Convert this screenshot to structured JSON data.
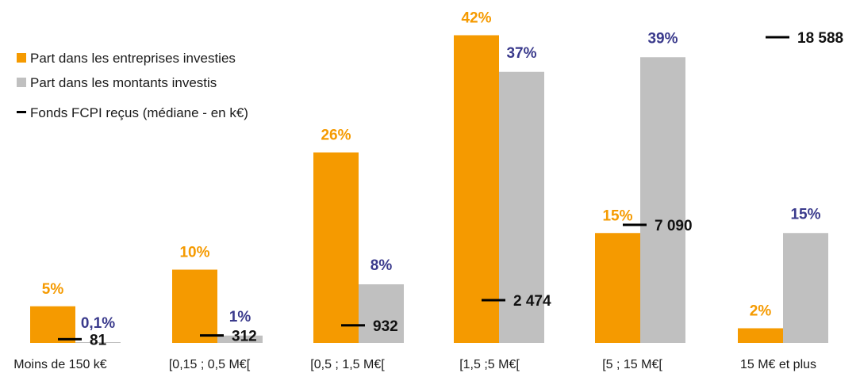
{
  "chart_data": {
    "type": "bar",
    "categories": [
      "Moins de 150 k€",
      "[0,15 ; 0,5 M€[",
      "[0,5 ; 1,5 M€[",
      "[1,5 ;5 M€[",
      "[5 ; 15 M€[",
      "15 M€ et plus"
    ],
    "series": [
      {
        "name": "Part dans les entreprises investies",
        "values": [
          5,
          10,
          26,
          42,
          15,
          2
        ],
        "labels": [
          "5%",
          "10%",
          "26%",
          "42%",
          "15%",
          "2%"
        ],
        "color": "#f59a00",
        "label_color": "#f59a00"
      },
      {
        "name": "Part dans les montants investis",
        "values": [
          0.1,
          1,
          8,
          37,
          39,
          15
        ],
        "labels": [
          "0,1%",
          "1%",
          "8%",
          "37%",
          "39%",
          "15%"
        ],
        "color": "#c0c0c0",
        "label_color": "#3a3a8c"
      }
    ],
    "median_series": {
      "name": "Fonds FCPI reçus (médiane - en k€)",
      "values": [
        81,
        312,
        932,
        2474,
        7090,
        18588
      ],
      "labels": [
        "81",
        "312",
        "932",
        "2 474",
        "7 090",
        "18 588"
      ],
      "color": "#000000"
    },
    "ylim": [
      0,
      42
    ],
    "median_ylim": [
      0,
      18588
    ],
    "grid": false,
    "legend_placement": "top-left"
  }
}
